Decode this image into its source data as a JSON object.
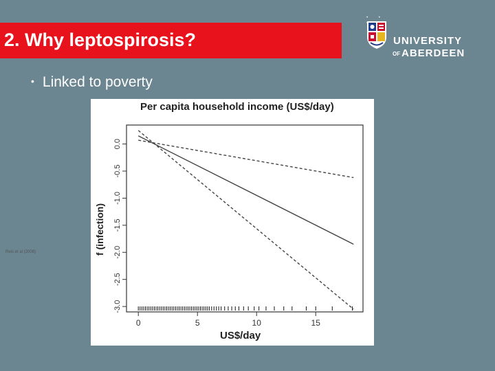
{
  "slide": {
    "title": "2. Why leptospirosis?",
    "bullet": "Linked to poverty",
    "bullet_marker": "•",
    "title_bar_color": "#e8121d",
    "background_color": "#6b8591"
  },
  "logo": {
    "line1": "UNIVERSITY",
    "line2_small": "OF",
    "line2": "ABERDEEN",
    "crest_icon": "university-crest-icon"
  },
  "citation": "Reis et al (2008)",
  "chart_data": {
    "type": "line",
    "title": "Per capita household income (US$/day)",
    "xlabel": "US$/day",
    "ylabel": "f (infection)",
    "xlim": [
      -1,
      19
    ],
    "ylim": [
      -3.1,
      0.35
    ],
    "x_ticks": [
      0,
      5,
      10,
      15
    ],
    "y_ticks": [
      0.0,
      -0.5,
      -1.0,
      -1.5,
      -2.0,
      -2.5,
      -3.0
    ],
    "x_tick_labels": [
      "0",
      "5",
      "10",
      "15"
    ],
    "y_tick_labels": [
      "0.0",
      "-0.5",
      "-1.0",
      "-1.5",
      "-2.0",
      "-2.5",
      "-3.0"
    ],
    "series": [
      {
        "style": "solid",
        "x": [
          0,
          18.2
        ],
        "y": [
          0.15,
          -1.85
        ]
      },
      {
        "style": "dashed",
        "x": [
          0,
          18.2
        ],
        "y": [
          0.07,
          -0.62
        ]
      },
      {
        "style": "dashed",
        "x": [
          0,
          18.2
        ],
        "y": [
          0.25,
          -3.05
        ]
      }
    ],
    "rug_x": [
      0,
      0.15,
      0.3,
      0.45,
      0.6,
      0.75,
      0.9,
      1.05,
      1.2,
      1.35,
      1.5,
      1.65,
      1.8,
      1.95,
      2.1,
      2.25,
      2.4,
      2.55,
      2.7,
      2.85,
      3.0,
      3.15,
      3.3,
      3.45,
      3.6,
      3.75,
      3.9,
      4.05,
      4.2,
      4.35,
      4.5,
      4.65,
      4.8,
      4.95,
      5.1,
      5.25,
      5.4,
      5.55,
      5.7,
      5.85,
      6.0,
      6.2,
      6.4,
      6.6,
      6.8,
      7.0,
      7.3,
      7.6,
      7.9,
      8.2,
      8.5,
      8.9,
      9.3,
      9.8,
      10.2,
      10.8,
      11.5,
      12.3,
      13.0,
      14.2,
      15.0,
      16.4,
      18.1
    ],
    "grid": false,
    "legend": "none"
  }
}
